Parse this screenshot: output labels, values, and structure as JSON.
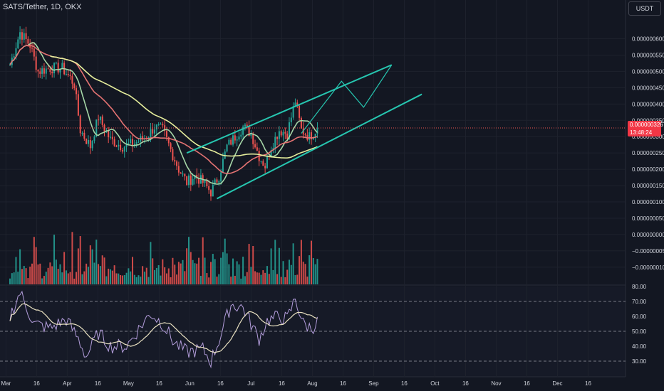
{
  "symbol_label": "SATS/Tether, 1D, OKX",
  "currency": "USDT",
  "current_price": "0.0000003267",
  "countdown": "13:48:24",
  "colors": {
    "background": "#131722",
    "grid": "#1e222d",
    "up": "#26a69a",
    "down": "#ef5350",
    "ma_fast": "#a5d6a7",
    "ma_mid": "#e57373",
    "ma_slow": "#e6ee9c",
    "channel": "#26c6b0",
    "rsi": "#b39ddb",
    "rsi_ma": "#e8e0c0"
  },
  "chart_data": [
    {
      "type": "candlestick",
      "name": "price",
      "x_axis_labels": [
        "Mar",
        "16",
        "Apr",
        "16",
        "May",
        "16",
        "Jun",
        "16",
        "Jul",
        "16",
        "Aug",
        "16",
        "Sep",
        "16",
        "Oct",
        "16",
        "Nov",
        "16",
        "Dec",
        "16"
      ],
      "y_ticks": [
        "0.0000006000",
        "0.0000005500",
        "0.0000005000",
        "0.0000004500",
        "0.0000004000",
        "0.0000003500",
        "0.0000003000",
        "0.0000002500",
        "0.0000002000",
        "0.0000001500",
        "0.0000001000",
        "0.0000000500",
        "0.0000000000",
        "−0.0000000500",
        "−0.0000001000"
      ],
      "ylim": [
        -1.2e-07,
        6.6e-07
      ],
      "close_points_approx": [
        {
          "day": 0,
          "value": 5.2e-07
        },
        {
          "day": 5,
          "value": 6.2e-07
        },
        {
          "day": 10,
          "value": 5.8e-07
        },
        {
          "day": 14,
          "value": 5e-07
        },
        {
          "day": 20,
          "value": 5.1e-07
        },
        {
          "day": 26,
          "value": 5.1e-07
        },
        {
          "day": 30,
          "value": 4.8e-07
        },
        {
          "day": 32,
          "value": 4.6e-07
        },
        {
          "day": 35,
          "value": 3.2e-07
        },
        {
          "day": 40,
          "value": 2.7e-07
        },
        {
          "day": 44,
          "value": 3.6e-07
        },
        {
          "day": 50,
          "value": 2.9e-07
        },
        {
          "day": 56,
          "value": 2.7e-07
        },
        {
          "day": 62,
          "value": 2.8e-07
        },
        {
          "day": 68,
          "value": 3e-07
        },
        {
          "day": 72,
          "value": 3.3e-07
        },
        {
          "day": 76,
          "value": 3.2e-07
        },
        {
          "day": 80,
          "value": 2.6e-07
        },
        {
          "day": 84,
          "value": 2e-07
        },
        {
          "day": 88,
          "value": 1.6e-07
        },
        {
          "day": 92,
          "value": 1.8e-07
        },
        {
          "day": 96,
          "value": 1.6e-07
        },
        {
          "day": 100,
          "value": 1.3e-07
        },
        {
          "day": 104,
          "value": 1.8e-07
        },
        {
          "day": 108,
          "value": 2.7e-07
        },
        {
          "day": 112,
          "value": 3e-07
        },
        {
          "day": 116,
          "value": 3.3e-07
        },
        {
          "day": 120,
          "value": 3.1e-07
        },
        {
          "day": 124,
          "value": 2.4e-07
        },
        {
          "day": 127,
          "value": 2.1e-07
        },
        {
          "day": 130,
          "value": 2.7e-07
        },
        {
          "day": 134,
          "value": 3.2e-07
        },
        {
          "day": 138,
          "value": 3.1e-07
        },
        {
          "day": 142,
          "value": 4.1e-07
        },
        {
          "day": 145,
          "value": 3.2e-07
        },
        {
          "day": 149,
          "value": 3e-07
        },
        {
          "day": 153,
          "value": 3.267e-07
        }
      ],
      "projection_path": [
        {
          "day": 145,
          "value": 3.1e-07
        },
        {
          "day": 165,
          "value": 4.7e-07
        },
        {
          "day": 176,
          "value": 3.9e-07
        },
        {
          "day": 190,
          "value": 5.2e-07
        }
      ],
      "channel_lines": [
        {
          "from": {
            "day": 88,
            "value": 2.5e-07
          },
          "to": {
            "day": 190,
            "value": 5.2e-07
          }
        },
        {
          "from": {
            "day": 103,
            "value": 1.1e-07
          },
          "to": {
            "day": 205,
            "value": 4.3e-07
          }
        }
      ]
    },
    {
      "type": "bar",
      "name": "volume",
      "note_values": "relative heights only"
    },
    {
      "type": "line",
      "name": "rsi",
      "y_ticks": [
        "80.00",
        "70.00",
        "60.00",
        "50.00",
        "40.00",
        "30.00"
      ],
      "ylim": [
        28,
        82
      ],
      "bands": [
        30,
        50,
        70
      ],
      "points_approx": [
        {
          "day": 0,
          "value": 60
        },
        {
          "day": 5,
          "value": 76
        },
        {
          "day": 12,
          "value": 55
        },
        {
          "day": 20,
          "value": 52
        },
        {
          "day": 28,
          "value": 58
        },
        {
          "day": 34,
          "value": 45
        },
        {
          "day": 38,
          "value": 33
        },
        {
          "day": 44,
          "value": 49
        },
        {
          "day": 50,
          "value": 40
        },
        {
          "day": 58,
          "value": 40
        },
        {
          "day": 66,
          "value": 55
        },
        {
          "day": 70,
          "value": 62
        },
        {
          "day": 76,
          "value": 55
        },
        {
          "day": 82,
          "value": 42
        },
        {
          "day": 88,
          "value": 36
        },
        {
          "day": 96,
          "value": 38
        },
        {
          "day": 100,
          "value": 30
        },
        {
          "day": 104,
          "value": 44
        },
        {
          "day": 110,
          "value": 68
        },
        {
          "day": 116,
          "value": 66
        },
        {
          "day": 120,
          "value": 55
        },
        {
          "day": 124,
          "value": 45
        },
        {
          "day": 128,
          "value": 57
        },
        {
          "day": 134,
          "value": 60
        },
        {
          "day": 138,
          "value": 58
        },
        {
          "day": 142,
          "value": 72
        },
        {
          "day": 146,
          "value": 55
        },
        {
          "day": 150,
          "value": 52
        },
        {
          "day": 153,
          "value": 56
        }
      ]
    }
  ]
}
